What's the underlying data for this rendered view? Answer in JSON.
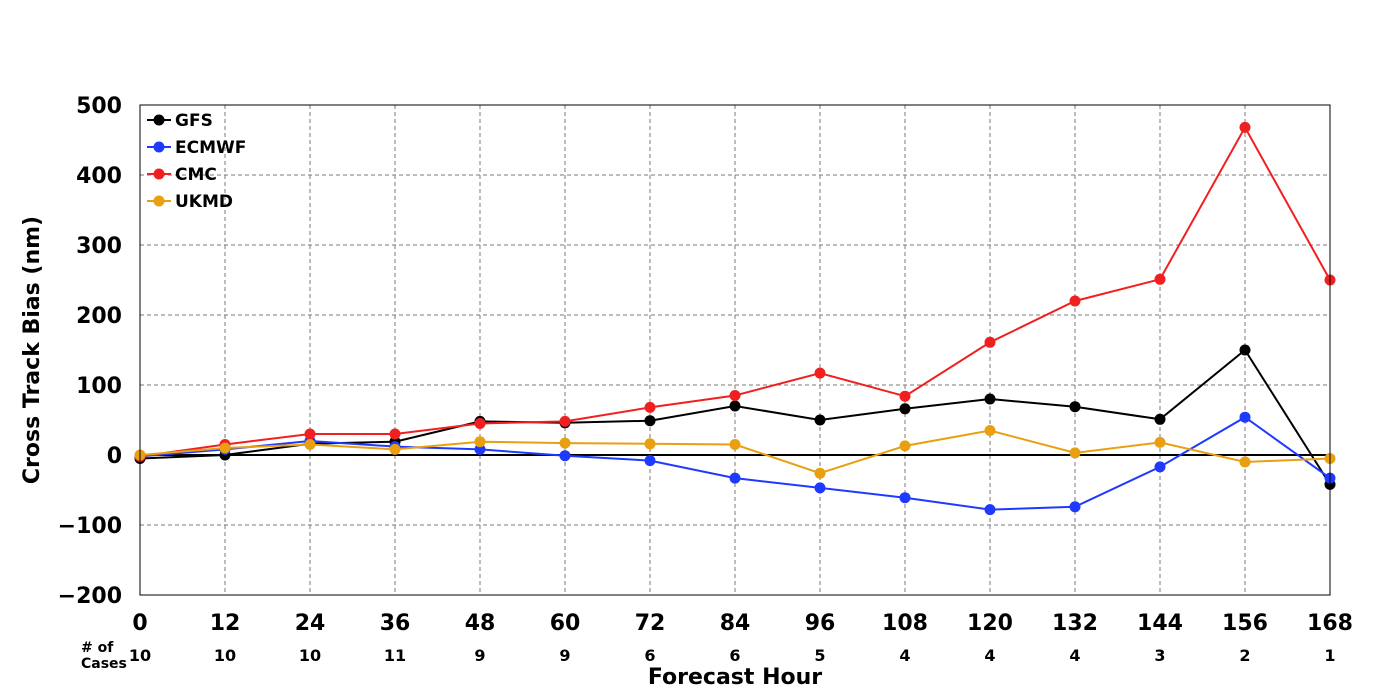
{
  "chart_data": {
    "type": "line",
    "title": "",
    "xlabel": "Forecast Hour",
    "ylabel": "Cross Track Bias (nm)",
    "x": [
      0,
      12,
      24,
      36,
      48,
      60,
      72,
      84,
      96,
      108,
      120,
      132,
      144,
      156,
      168
    ],
    "x_ticks": [
      "0",
      "12",
      "24",
      "36",
      "48",
      "60",
      "72",
      "84",
      "96",
      "108",
      "120",
      "132",
      "144",
      "156",
      "168"
    ],
    "y_ticks": [
      "500",
      "400",
      "300",
      "200",
      "100",
      "0",
      "−100",
      "−200"
    ],
    "xlim": [
      0,
      168
    ],
    "ylim": [
      -200,
      500
    ],
    "grid": true,
    "legend_position": "top-left",
    "zero_line": true,
    "cases_label_line1": "# of",
    "cases_label_line2": "Cases",
    "cases": [
      "10",
      "10",
      "10",
      "11",
      "9",
      "9",
      "6",
      "6",
      "5",
      "4",
      "4",
      "4",
      "3",
      "2",
      "1"
    ],
    "series": [
      {
        "name": "GFS",
        "color": "#000000",
        "values": [
          -5,
          0,
          16,
          19,
          48,
          46,
          49,
          70,
          50,
          66,
          80,
          69,
          51,
          150,
          -42
        ]
      },
      {
        "name": "ECMWF",
        "color": "#1f3aff",
        "values": [
          -2,
          8,
          20,
          12,
          8,
          -1,
          -8,
          -33,
          -47,
          -61,
          -78,
          -74,
          -17,
          54,
          -33
        ]
      },
      {
        "name": "CMC",
        "color": "#f02020",
        "values": [
          -2,
          15,
          30,
          30,
          45,
          48,
          68,
          85,
          117,
          84,
          161,
          220,
          251,
          468,
          250
        ]
      },
      {
        "name": "UKMD",
        "color": "#e8a010",
        "values": [
          0,
          10,
          15,
          8,
          19,
          17,
          16,
          15,
          -26,
          13,
          35,
          3,
          18,
          -10,
          -5
        ]
      }
    ]
  }
}
